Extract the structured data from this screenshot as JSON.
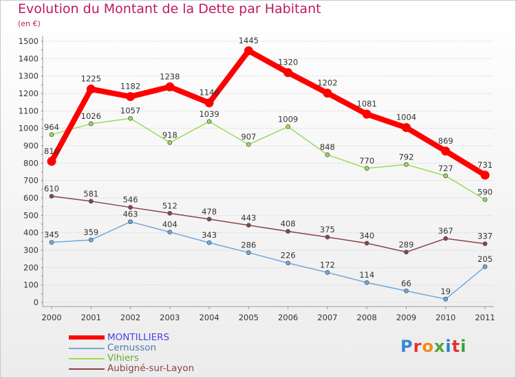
{
  "chart_data": {
    "type": "line",
    "title": "Evolution du Montant de la Dette par Habitant",
    "subtitle": "(en €)",
    "categories": [
      "2000",
      "2001",
      "2002",
      "2003",
      "2004",
      "2005",
      "2006",
      "2007",
      "2008",
      "2009",
      "2010",
      "2011"
    ],
    "ylim": [
      0,
      1500
    ],
    "yticks": [
      0,
      100,
      200,
      300,
      400,
      500,
      600,
      700,
      800,
      900,
      1000,
      1100,
      1200,
      1300,
      1400,
      1500
    ],
    "grid": "horizontal",
    "legend_position": "bottom-left",
    "series": [
      {
        "name": "MONTILLIERS",
        "color": "#ff0000",
        "text_color": "#4444ee",
        "values": [
          810,
          1225,
          1182,
          1238,
          1146,
          1445,
          1320,
          1202,
          1081,
          1004,
          869,
          731
        ]
      },
      {
        "name": "Cernusson",
        "color": "#6fa8dc",
        "text_color": "#4d78b0",
        "values": [
          345,
          359,
          463,
          404,
          343,
          286,
          226,
          172,
          114,
          66,
          19,
          205
        ]
      },
      {
        "name": "Vihiers",
        "color": "#99dd55",
        "text_color": "#66aa33",
        "values": [
          964,
          1026,
          1057,
          918,
          1039,
          907,
          1009,
          848,
          770,
          792,
          727,
          590
        ]
      },
      {
        "name": "Aubigné-sur-Layon",
        "color": "#884444",
        "text_color": "#884444",
        "values": [
          610,
          581,
          546,
          512,
          478,
          443,
          408,
          375,
          340,
          289,
          367,
          337
        ]
      }
    ]
  },
  "brand": {
    "letters": [
      "P",
      "r",
      "o",
      "x",
      "i",
      "t",
      "i"
    ],
    "colors": [
      "#3b86d9",
      "#e8322b",
      "#f08c1a",
      "#4aa83a",
      "#2c7ec9",
      "#e8322b",
      "#39a33a"
    ]
  }
}
